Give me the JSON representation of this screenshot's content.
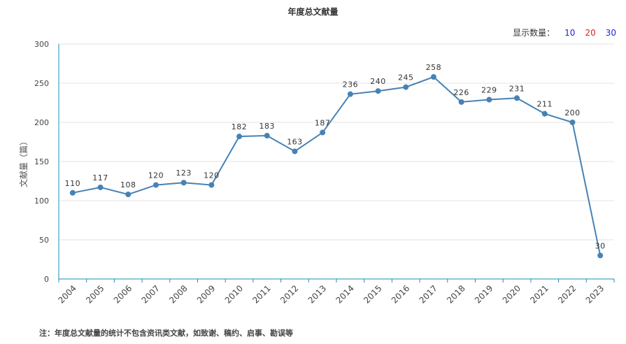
{
  "header": {
    "title": "年度总文献量",
    "display_count_label": "显示数量：",
    "display_options": [
      {
        "label": "10",
        "color": "#1f1fd6"
      },
      {
        "label": "20",
        "color": "#e02020"
      },
      {
        "label": "30",
        "color": "#1f1fd6"
      }
    ]
  },
  "footnote": "注：年度总文献量的统计不包含资讯类文献，如致谢、稿约、启事、勘误等",
  "chart_data": {
    "type": "line",
    "title": "年度总文献量",
    "xlabel": "",
    "ylabel": "文献量（篇）",
    "ylim": [
      0,
      300
    ],
    "yticks": [
      0,
      50,
      100,
      150,
      200,
      250,
      300
    ],
    "grid": true,
    "line_color": "#4682b4",
    "categories": [
      "2004",
      "2005",
      "2006",
      "2007",
      "2008",
      "2009",
      "2010",
      "2011",
      "2012",
      "2013",
      "2014",
      "2015",
      "2016",
      "2017",
      "2018",
      "2019",
      "2020",
      "2021",
      "2022",
      "2023"
    ],
    "values": [
      110,
      117,
      108,
      120,
      123,
      120,
      182,
      183,
      163,
      187,
      236,
      240,
      245,
      258,
      226,
      229,
      231,
      211,
      200,
      30
    ]
  }
}
